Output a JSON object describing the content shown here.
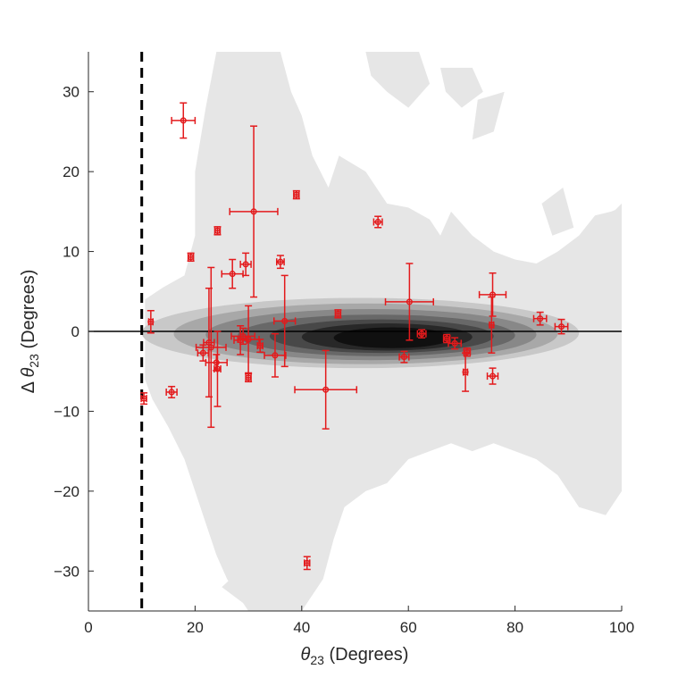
{
  "chart_data": {
    "type": "scatter",
    "title": "",
    "xlabel": {
      "symbol": "θ",
      "subscript": "23",
      "suffix": " (Degrees)"
    },
    "ylabel": {
      "prefix": "Δ ",
      "symbol": "θ",
      "subscript": "23",
      "suffix": " (Degrees)"
    },
    "xlim": [
      0,
      100
    ],
    "ylim": [
      -35,
      35
    ],
    "x_ticks": [
      0,
      20,
      40,
      60,
      80,
      100
    ],
    "y_ticks": [
      -30,
      -20,
      -10,
      0,
      10,
      20,
      30
    ],
    "x_tick_labels": [
      "0",
      "20",
      "40",
      "60",
      "80",
      "100"
    ],
    "y_tick_labels": [
      "−30",
      "−20",
      "−10",
      "0",
      "10",
      "20",
      "30"
    ],
    "grid": false,
    "reference_lines": [
      {
        "orientation": "horizontal",
        "value": 0,
        "style": "solid",
        "color": "#000000"
      },
      {
        "orientation": "vertical",
        "value": 10,
        "style": "dashed",
        "color": "#000000"
      }
    ],
    "marker_color": "#e31a1c",
    "density_background": {
      "description_of_levels": "light gray outer envelope to black core",
      "colors": [
        "#e6e6e6",
        "#c8c8c8",
        "#a8a8a8",
        "#888888",
        "#686868",
        "#484848",
        "#282828",
        "#101010"
      ]
    },
    "points": [
      {
        "x": 17.8,
        "y": 26.4,
        "xerr": 2.2,
        "yerr": 2.2
      },
      {
        "x": 31.0,
        "y": 15.0,
        "xerr": 4.5,
        "yerr": 10.7
      },
      {
        "x": 39.0,
        "y": 17.1,
        "xerr": 0.5,
        "yerr": 0.5
      },
      {
        "x": 24.2,
        "y": 12.6,
        "xerr": 0.5,
        "yerr": 0.5
      },
      {
        "x": 19.2,
        "y": 9.3,
        "xerr": 0.5,
        "yerr": 0.5
      },
      {
        "x": 27.0,
        "y": 7.2,
        "xerr": 2.0,
        "yerr": 1.8
      },
      {
        "x": 29.5,
        "y": 8.4,
        "xerr": 1.0,
        "yerr": 1.4
      },
      {
        "x": 36.0,
        "y": 8.7,
        "xerr": 0.7,
        "yerr": 0.8
      },
      {
        "x": 54.3,
        "y": 13.7,
        "xerr": 0.8,
        "yerr": 0.7
      },
      {
        "x": 11.7,
        "y": 1.2,
        "xerr": 0.4,
        "yerr": 1.4
      },
      {
        "x": 10.4,
        "y": -8.4,
        "xerr": 0.5,
        "yerr": 0.7
      },
      {
        "x": 15.6,
        "y": -7.6,
        "xerr": 1.0,
        "yerr": 0.7
      },
      {
        "x": 22.6,
        "y": -1.4,
        "xerr": 1.0,
        "yerr": 6.8
      },
      {
        "x": 23.0,
        "y": -2.0,
        "xerr": 2.8,
        "yerr": 10.0
      },
      {
        "x": 21.5,
        "y": -2.7,
        "xerr": 1.0,
        "yerr": 1.0
      },
      {
        "x": 24.2,
        "y": -4.7,
        "xerr": 0.6,
        "yerr": 4.7
      },
      {
        "x": 24.0,
        "y": -3.9,
        "xerr": 2.0,
        "yerr": 1.0
      },
      {
        "x": 28.5,
        "y": -1.1,
        "xerr": 1.2,
        "yerr": 1.8
      },
      {
        "x": 29.0,
        "y": -0.6,
        "xerr": 2.2,
        "yerr": 1.0
      },
      {
        "x": 30.0,
        "y": -1.0,
        "xerr": 2.0,
        "yerr": 4.2
      },
      {
        "x": 30.0,
        "y": -5.8,
        "xerr": 0.5,
        "yerr": 0.5
      },
      {
        "x": 32.2,
        "y": -1.8,
        "xerr": 0.5,
        "yerr": 0.8
      },
      {
        "x": 35.0,
        "y": -3.0,
        "xerr": 2.0,
        "yerr": 2.7
      },
      {
        "x": 36.8,
        "y": 1.3,
        "xerr": 2.0,
        "yerr": 5.7
      },
      {
        "x": 46.8,
        "y": 2.2,
        "xerr": 0.5,
        "yerr": 0.5
      },
      {
        "x": 44.5,
        "y": -7.3,
        "xerr": 5.8,
        "yerr": 4.9
      },
      {
        "x": 41.0,
        "y": -29.0,
        "xerr": 0.5,
        "yerr": 0.8
      },
      {
        "x": 60.2,
        "y": 3.7,
        "xerr": 4.5,
        "yerr": 4.8
      },
      {
        "x": 62.5,
        "y": -0.3,
        "xerr": 0.8,
        "yerr": 0.5
      },
      {
        "x": 59.2,
        "y": -3.2,
        "xerr": 0.9,
        "yerr": 0.7
      },
      {
        "x": 67.2,
        "y": -0.9,
        "xerr": 0.6,
        "yerr": 0.5
      },
      {
        "x": 68.7,
        "y": -1.5,
        "xerr": 1.2,
        "yerr": 0.7
      },
      {
        "x": 71.0,
        "y": -2.6,
        "xerr": 0.6,
        "yerr": 0.5
      },
      {
        "x": 70.7,
        "y": -5.1,
        "xerr": 0.4,
        "yerr": 2.4
      },
      {
        "x": 75.8,
        "y": 4.6,
        "xerr": 2.5,
        "yerr": 2.7
      },
      {
        "x": 75.6,
        "y": 0.8,
        "xerr": 0.4,
        "yerr": 3.5
      },
      {
        "x": 75.8,
        "y": -5.6,
        "xerr": 1.0,
        "yerr": 1.0
      },
      {
        "x": 84.7,
        "y": 1.6,
        "xerr": 1.2,
        "yerr": 0.8
      },
      {
        "x": 88.7,
        "y": 0.6,
        "xerr": 1.2,
        "yerr": 0.9
      }
    ]
  }
}
